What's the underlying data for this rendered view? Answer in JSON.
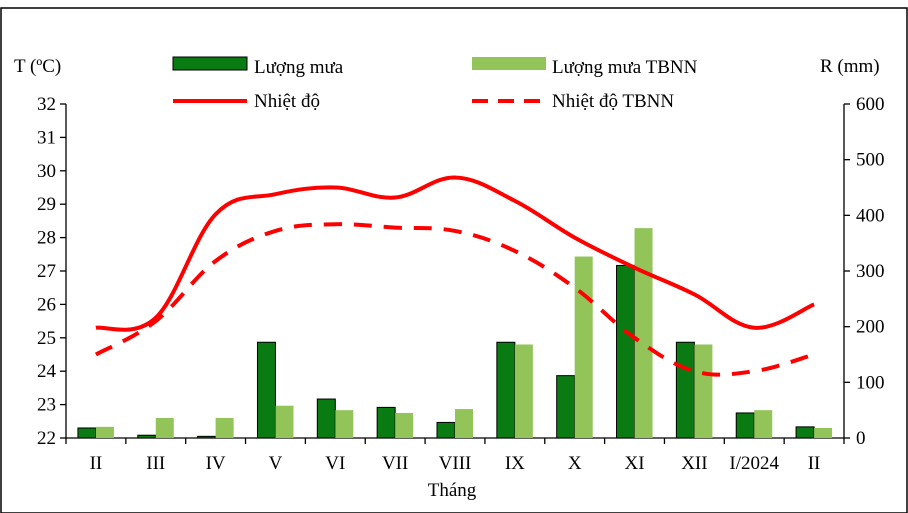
{
  "chart_data": {
    "type": "bar+line",
    "categories": [
      "II",
      "III",
      "IV",
      "V",
      "VI",
      "VII",
      "VIII",
      "IX",
      "X",
      "XI",
      "XII",
      "I/2024",
      "II"
    ],
    "xlabel": "Tháng",
    "y_left_label": "T (ºC)",
    "y_right_label": "R (mm)",
    "y_left_range": [
      22,
      32
    ],
    "y_left_ticks": [
      22,
      23,
      24,
      25,
      26,
      27,
      28,
      29,
      30,
      31,
      32
    ],
    "y_right_range": [
      0,
      600
    ],
    "y_right_ticks": [
      0,
      100,
      200,
      300,
      400,
      500,
      600
    ],
    "legend_placement": "top",
    "grid": false,
    "series": [
      {
        "name": "Lượng mưa",
        "kind": "bar",
        "axis": "right",
        "color": "#0a7a12",
        "values": [
          18,
          5,
          3,
          172,
          70,
          55,
          28,
          172,
          112,
          310,
          172,
          45,
          20
        ]
      },
      {
        "name": "Lượng mưa TBNN",
        "kind": "bar",
        "axis": "right",
        "color": "#92c45a",
        "values": [
          20,
          36,
          36,
          58,
          50,
          45,
          52,
          168,
          326,
          377,
          168,
          50,
          18
        ]
      },
      {
        "name": "Nhiệt độ",
        "kind": "line",
        "axis": "left",
        "style": "solid",
        "color": "#ff0000",
        "values": [
          25.3,
          25.6,
          28.7,
          29.3,
          29.5,
          29.2,
          29.8,
          29.1,
          28.0,
          27.1,
          26.3,
          25.3,
          26.0
        ]
      },
      {
        "name": "Nhiệt độ TBNN",
        "kind": "line",
        "axis": "left",
        "style": "dashed",
        "color": "#ff0000",
        "values": [
          24.5,
          25.5,
          27.3,
          28.2,
          28.4,
          28.3,
          28.2,
          27.6,
          26.5,
          25.0,
          24.0,
          24.0,
          24.5
        ]
      }
    ]
  }
}
